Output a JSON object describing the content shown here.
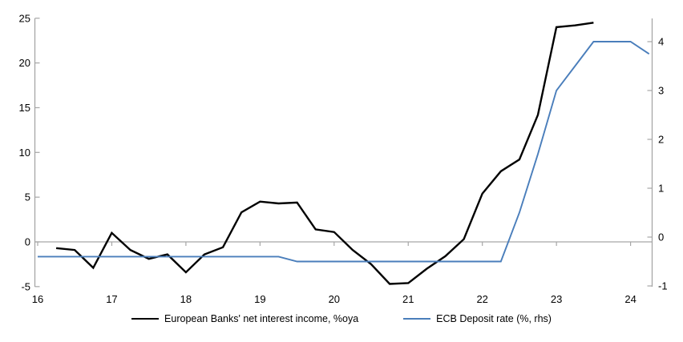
{
  "chart_data": {
    "type": "line",
    "title": "",
    "x_axis": {
      "tick_labels": [
        "16",
        "17",
        "18",
        "19",
        "20",
        "21",
        "22",
        "23",
        "24"
      ],
      "tick_values": [
        16,
        17,
        18,
        19,
        20,
        21,
        22,
        23,
        24
      ],
      "range": [
        15.96,
        24.33
      ]
    },
    "y_axis_left": {
      "tick_labels": [
        "25",
        "20",
        "15",
        "10",
        "5",
        "0",
        "-5"
      ],
      "tick_values": [
        25,
        20,
        15,
        10,
        5,
        0,
        -5
      ],
      "range": [
        -5,
        25
      ]
    },
    "y_axis_right": {
      "tick_labels": [
        "4",
        "3",
        "2",
        "1",
        "0",
        "-1"
      ],
      "tick_values": [
        4,
        3,
        2,
        1,
        0,
        -1
      ],
      "range": [
        -1.05,
        4.5
      ]
    },
    "zero_gridline": true,
    "legend_position": "bottom-center",
    "series": [
      {
        "name": "European Banks' net interest income, %oya",
        "axis": "left",
        "color": "#000000",
        "stroke_width": 2.4,
        "points": [
          [
            16.25,
            -0.7
          ],
          [
            16.5,
            -0.9
          ],
          [
            16.75,
            -2.9
          ],
          [
            17.0,
            1.0
          ],
          [
            17.25,
            -0.9
          ],
          [
            17.5,
            -1.9
          ],
          [
            17.75,
            -1.4
          ],
          [
            18.0,
            -3.4
          ],
          [
            18.25,
            -1.4
          ],
          [
            18.5,
            -0.6
          ],
          [
            18.75,
            3.3
          ],
          [
            19.0,
            4.5
          ],
          [
            19.25,
            4.3
          ],
          [
            19.5,
            4.4
          ],
          [
            19.75,
            1.4
          ],
          [
            20.0,
            1.1
          ],
          [
            20.25,
            -0.9
          ],
          [
            20.5,
            -2.5
          ],
          [
            20.75,
            -4.7
          ],
          [
            21.0,
            -4.6
          ],
          [
            21.25,
            -3.0
          ],
          [
            21.5,
            -1.6
          ],
          [
            21.75,
            0.3
          ],
          [
            22.0,
            5.4
          ],
          [
            22.25,
            7.9
          ],
          [
            22.5,
            9.2
          ],
          [
            22.75,
            14.2
          ],
          [
            23.0,
            24.0
          ],
          [
            23.25,
            24.2
          ],
          [
            23.5,
            24.5
          ]
        ]
      },
      {
        "name": "ECB Deposit rate (%, rhs)",
        "axis": "right",
        "color": "#4a7ebb",
        "stroke_width": 1.9,
        "points": [
          [
            16.0,
            -0.4
          ],
          [
            19.25,
            -0.4
          ],
          [
            19.5,
            -0.5
          ],
          [
            22.25,
            -0.5
          ],
          [
            22.5,
            0.5
          ],
          [
            22.75,
            1.7
          ],
          [
            23.0,
            3.0
          ],
          [
            23.25,
            3.5
          ],
          [
            23.5,
            4.0
          ],
          [
            24.0,
            4.0
          ],
          [
            24.25,
            3.75
          ]
        ]
      }
    ]
  },
  "colors": {
    "axis": "#a6a6a6",
    "text": "#000000",
    "background": "#ffffff"
  }
}
